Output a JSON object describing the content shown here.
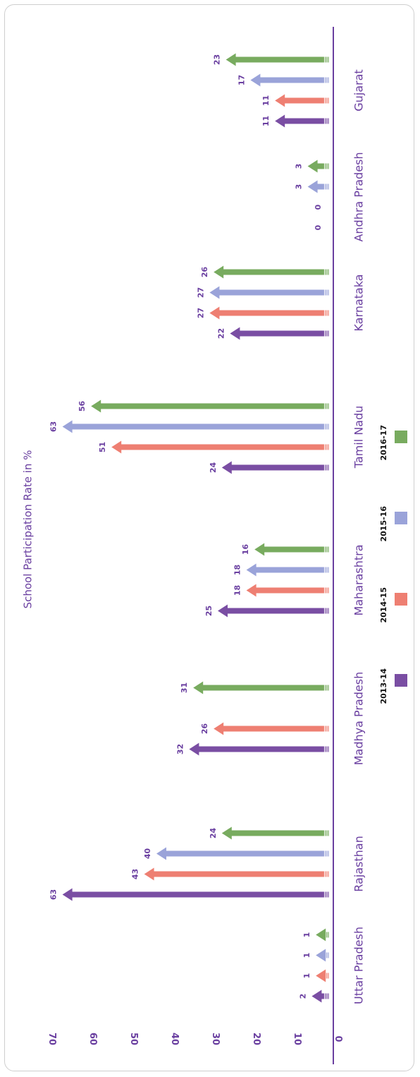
{
  "chart_data": {
    "type": "bar",
    "title": "School Participation Rate in %",
    "xlabel": "",
    "ylabel": "",
    "ylim": [
      0,
      70
    ],
    "yticks": [
      0,
      10,
      20,
      30,
      40,
      50,
      60,
      70
    ],
    "categories": [
      "Uttar Pradesh",
      "Rajasthan",
      "Madhya Pradesh",
      "Maharashtra",
      "Tamil Nadu",
      "Karnataka",
      "Andhra Pradesh",
      "Gujarat"
    ],
    "series": [
      {
        "name": "2013-14",
        "color": "#7a4ea3",
        "values": [
          2,
          63,
          32,
          25,
          24,
          22,
          0,
          11
        ],
        "present": [
          true,
          true,
          true,
          true,
          true,
          true,
          true,
          true
        ]
      },
      {
        "name": "2014-15",
        "color": "#ee7f72",
        "values": [
          1,
          43,
          26,
          18,
          51,
          27,
          0,
          11
        ],
        "present": [
          true,
          true,
          true,
          true,
          true,
          true,
          true,
          true
        ]
      },
      {
        "name": "2015-16",
        "color": "#9aa3d9",
        "values": [
          1,
          40,
          0,
          18,
          63,
          27,
          3,
          17
        ],
        "present": [
          true,
          true,
          false,
          true,
          true,
          true,
          true,
          true
        ]
      },
      {
        "name": "2016-17",
        "color": "#78ab5f",
        "values": [
          1,
          24,
          31,
          16,
          56,
          26,
          3,
          23
        ],
        "present": [
          true,
          true,
          true,
          true,
          true,
          true,
          true,
          true
        ]
      }
    ],
    "legend_position": "right",
    "grid": false,
    "axis_color": "#6a3fa0",
    "label_color": "#6a3fa0"
  }
}
